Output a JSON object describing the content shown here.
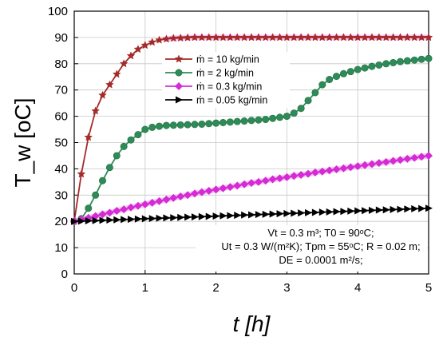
{
  "chart_data": {
    "type": "line",
    "xlabel": "t [h]",
    "ylabel": "T_w [oC]",
    "xlim": [
      0,
      5
    ],
    "ylim": [
      0,
      100
    ],
    "x_ticks": [
      0,
      1,
      2,
      3,
      4,
      5
    ],
    "y_ticks": [
      0,
      10,
      20,
      30,
      40,
      50,
      60,
      70,
      80,
      90,
      100
    ],
    "grid": true,
    "legend_position": "top-center",
    "series": [
      {
        "name": "ṁ = 10 kg/min",
        "color": "#a52a2a",
        "marker": "star",
        "x": [
          0,
          0.1,
          0.2,
          0.3,
          0.4,
          0.5,
          0.6,
          0.7,
          0.8,
          0.9,
          1.0,
          1.1,
          1.2,
          1.3,
          1.4,
          1.5,
          1.6,
          1.7,
          1.8,
          1.9,
          2.0,
          2.1,
          2.2,
          2.3,
          2.4,
          2.5,
          2.6,
          2.7,
          2.8,
          2.9,
          3.0,
          3.1,
          3.2,
          3.3,
          3.4,
          3.5,
          3.6,
          3.7,
          3.8,
          3.9,
          4.0,
          4.1,
          4.2,
          4.3,
          4.4,
          4.5,
          4.6,
          4.7,
          4.8,
          4.9,
          5.0
        ],
        "values": [
          20,
          38,
          52,
          62,
          68,
          72,
          76,
          80,
          83,
          85.5,
          87,
          88.2,
          89,
          89.4,
          89.7,
          89.8,
          89.9,
          90,
          90,
          90,
          90,
          90,
          90,
          90,
          90,
          90,
          90,
          90,
          90,
          90,
          90,
          90,
          90,
          90,
          90,
          90,
          90,
          90,
          90,
          90,
          90,
          90,
          90,
          90,
          90,
          90,
          90,
          90,
          90,
          90,
          90
        ]
      },
      {
        "name": "ṁ = 2 kg/min",
        "color": "#2e8b57",
        "marker": "circle",
        "x": [
          0,
          0.1,
          0.2,
          0.3,
          0.4,
          0.5,
          0.6,
          0.7,
          0.8,
          0.9,
          1.0,
          1.1,
          1.2,
          1.3,
          1.4,
          1.5,
          1.6,
          1.7,
          1.8,
          1.9,
          2.0,
          2.1,
          2.2,
          2.3,
          2.4,
          2.5,
          2.6,
          2.7,
          2.8,
          2.9,
          3.0,
          3.1,
          3.2,
          3.3,
          3.4,
          3.5,
          3.6,
          3.7,
          3.8,
          3.9,
          4.0,
          4.1,
          4.2,
          4.3,
          4.4,
          4.5,
          4.6,
          4.7,
          4.8,
          4.9,
          5.0
        ],
        "values": [
          20,
          21,
          25,
          30,
          35.5,
          40.5,
          45,
          48.5,
          51,
          53,
          55,
          55.8,
          56.2,
          56.5,
          56.6,
          56.7,
          56.8,
          56.9,
          57,
          57.2,
          57.4,
          57.6,
          57.8,
          58,
          58.2,
          58.4,
          58.6,
          58.8,
          59.2,
          59.6,
          60,
          61.2,
          63,
          66,
          69,
          72,
          74,
          75.2,
          76.2,
          77,
          77.8,
          78.4,
          79,
          79.5,
          80,
          80.4,
          80.8,
          81.1,
          81.4,
          81.7,
          82
        ]
      },
      {
        "name": "ṁ = 0.3 kg/min",
        "color": "#d52bd5",
        "marker": "diamond",
        "x": [
          0,
          0.1,
          0.2,
          0.3,
          0.4,
          0.5,
          0.6,
          0.7,
          0.8,
          0.9,
          1.0,
          1.1,
          1.2,
          1.3,
          1.4,
          1.5,
          1.6,
          1.7,
          1.8,
          1.9,
          2.0,
          2.1,
          2.2,
          2.3,
          2.4,
          2.5,
          2.6,
          2.7,
          2.8,
          2.9,
          3.0,
          3.1,
          3.2,
          3.3,
          3.4,
          3.5,
          3.6,
          3.7,
          3.8,
          3.9,
          4.0,
          4.1,
          4.2,
          4.3,
          4.4,
          4.5,
          4.6,
          4.7,
          4.8,
          4.9,
          5.0
        ],
        "values": [
          20,
          20.7,
          21.3,
          22,
          22.7,
          23.3,
          24,
          24.6,
          25.3,
          25.9,
          26.5,
          27.1,
          27.7,
          28.3,
          28.9,
          29.5,
          30,
          30.6,
          31.1,
          31.6,
          32.1,
          32.6,
          33.1,
          33.6,
          34.1,
          34.6,
          35,
          35.5,
          36,
          36.4,
          36.8,
          37.3,
          37.7,
          38.1,
          38.6,
          39,
          39.4,
          39.8,
          40.2,
          40.6,
          41,
          41.4,
          41.8,
          42.2,
          42.6,
          43,
          43.4,
          43.8,
          44.2,
          44.6,
          45
        ]
      },
      {
        "name": "ṁ = 0.05 kg/min",
        "color": "#000000",
        "marker": "triangle-right",
        "x": [
          0,
          0.1,
          0.2,
          0.3,
          0.4,
          0.5,
          0.6,
          0.7,
          0.8,
          0.9,
          1.0,
          1.1,
          1.2,
          1.3,
          1.4,
          1.5,
          1.6,
          1.7,
          1.8,
          1.9,
          2.0,
          2.1,
          2.2,
          2.3,
          2.4,
          2.5,
          2.6,
          2.7,
          2.8,
          2.9,
          3.0,
          3.1,
          3.2,
          3.3,
          3.4,
          3.5,
          3.6,
          3.7,
          3.8,
          3.9,
          4.0,
          4.1,
          4.2,
          4.3,
          4.4,
          4.5,
          4.6,
          4.7,
          4.8,
          4.9,
          5.0
        ],
        "values": [
          20,
          20.1,
          20.2,
          20.3,
          20.4,
          20.5,
          20.6,
          20.7,
          20.8,
          20.9,
          21,
          21.1,
          21.2,
          21.3,
          21.4,
          21.5,
          21.6,
          21.7,
          21.8,
          21.9,
          22,
          22.1,
          22.2,
          22.3,
          22.4,
          22.5,
          22.6,
          22.7,
          22.8,
          22.9,
          23,
          23.1,
          23.2,
          23.3,
          23.4,
          23.5,
          23.6,
          23.7,
          23.8,
          23.9,
          24,
          24.1,
          24.2,
          24.3,
          24.4,
          24.5,
          24.6,
          24.7,
          24.8,
          24.9,
          25
        ]
      }
    ],
    "annotations": [
      "Vt = 0.3 m³;  T0 = 90ᵒC;",
      "Ut = 0.3 W/(m²K); Tpm = 55ᵒC; R = 0.02 m;",
      "DE = 0.0001 m²/s;"
    ]
  }
}
